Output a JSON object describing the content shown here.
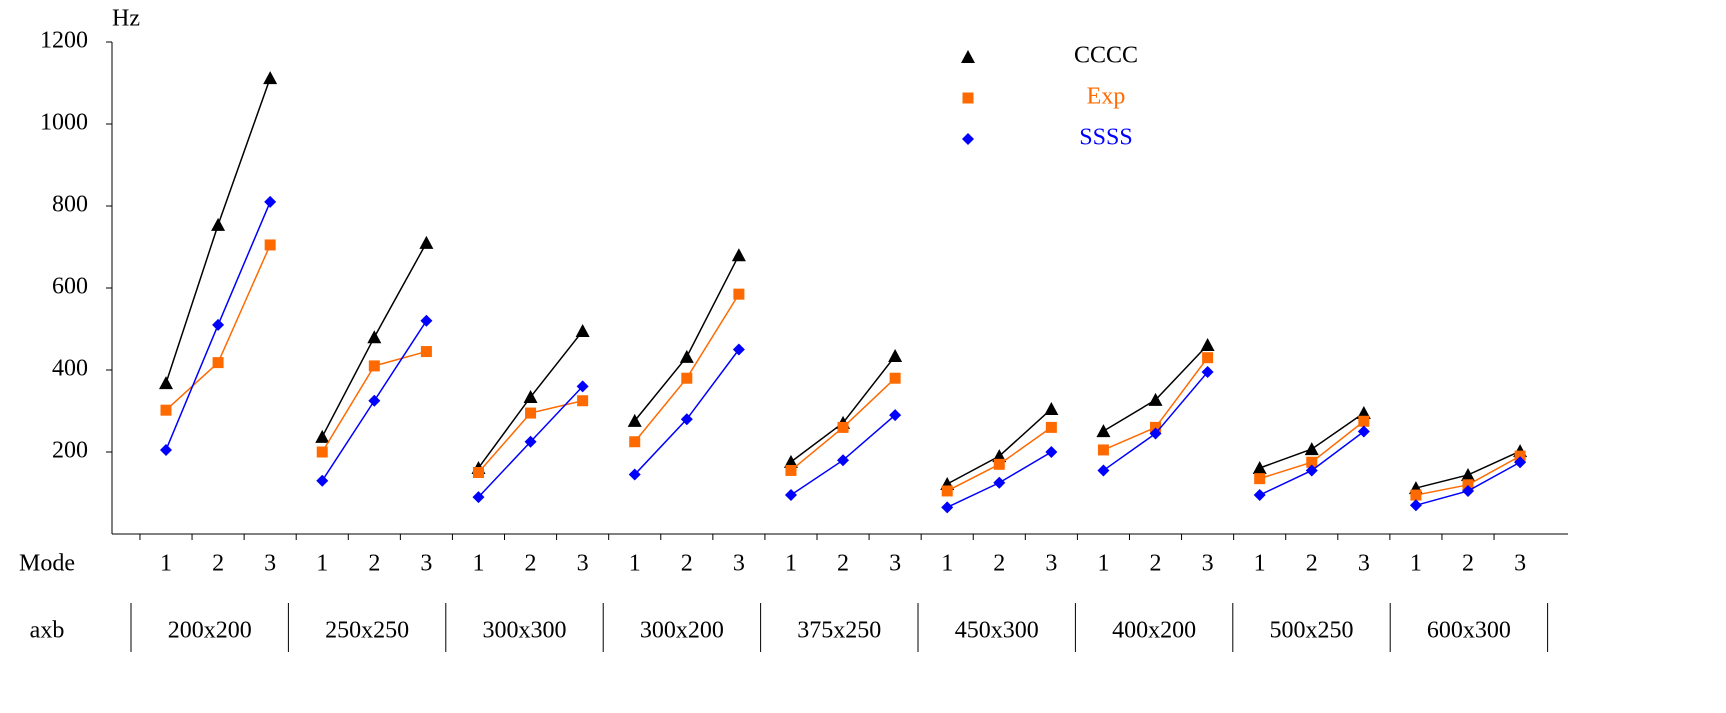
{
  "chart_data": {
    "type": "line",
    "y_label": "Hz",
    "x_label": "Mode",
    "group_label": "axb",
    "categories": [
      "1",
      "2",
      "3",
      "1",
      "2",
      "3",
      "1",
      "2",
      "3",
      "1",
      "2",
      "3",
      "1",
      "2",
      "3",
      "1",
      "2",
      "3",
      "1",
      "2",
      "3",
      "1",
      "2",
      "3",
      "1",
      "2",
      "3"
    ],
    "groups": [
      "200x200",
      "250x250",
      "300x300",
      "300x200",
      "375x250",
      "450x300",
      "400x200",
      "500x250",
      "600x300"
    ],
    "ylim": [
      0,
      1200
    ],
    "yticks": [
      200,
      400,
      600,
      800,
      1000,
      1200
    ],
    "series": [
      {
        "name": "CCCC",
        "color": "#000000",
        "marker": "triangle",
        "values": [
          368,
          754,
          1112,
          237,
          480,
          710,
          161,
          334,
          495,
          276,
          432,
          680,
          176,
          271,
          434,
          122,
          190,
          305,
          251,
          327,
          461,
          161,
          207,
          295,
          112,
          144,
          202
        ]
      },
      {
        "name": "Exp",
        "color": "#ff6a00",
        "marker": "square",
        "values": [
          302,
          418,
          705,
          200,
          410,
          445,
          150,
          295,
          325,
          225,
          380,
          585,
          155,
          260,
          380,
          105,
          170,
          260,
          205,
          260,
          430,
          135,
          175,
          275,
          95,
          120,
          190
        ]
      },
      {
        "name": "SSSS",
        "color": "#0000ff",
        "marker": "diamond",
        "values": [
          205,
          510,
          810,
          130,
          325,
          520,
          90,
          225,
          360,
          145,
          280,
          450,
          95,
          180,
          290,
          65,
          125,
          200,
          155,
          245,
          395,
          95,
          155,
          250,
          70,
          105,
          175
        ]
      }
    ]
  }
}
